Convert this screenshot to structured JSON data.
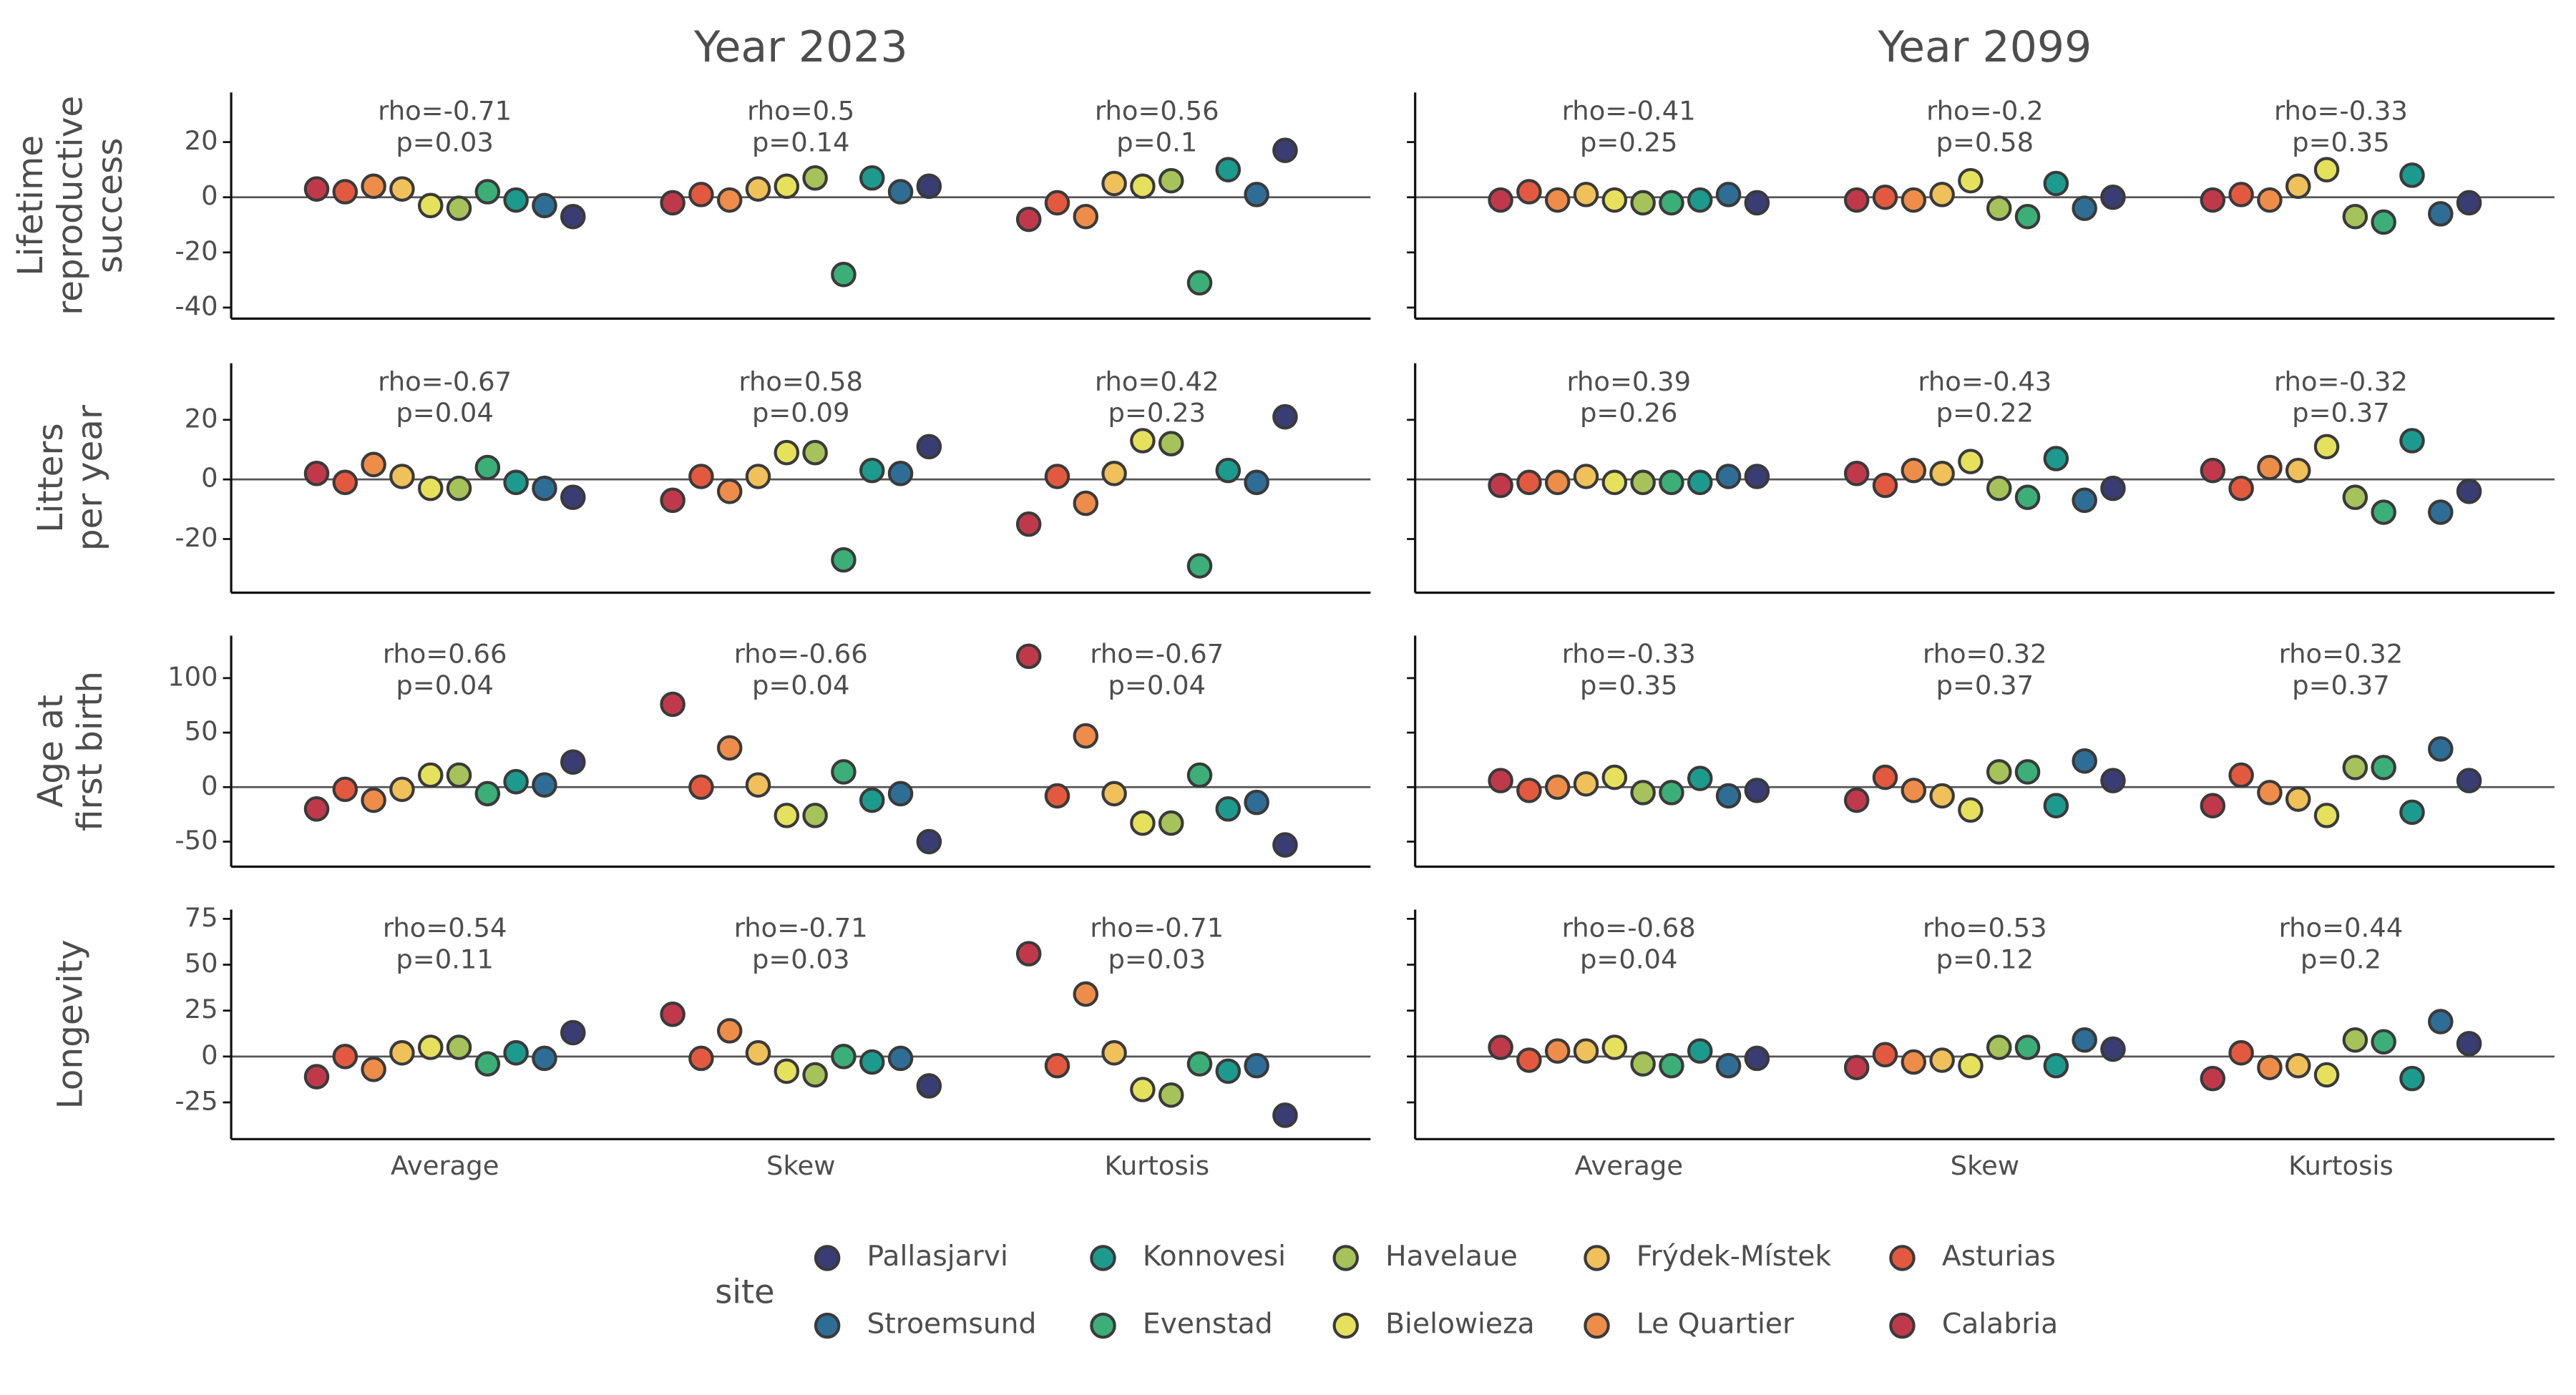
{
  "chart_data": {
    "type": "scatter",
    "columns": [
      "Year 2023",
      "Year 2099"
    ],
    "categories": [
      "Average",
      "Skew",
      "Kurtosis"
    ],
    "reference_line": 0,
    "legend_title": "site",
    "series": [
      {
        "name": "Calabria",
        "color": "#c0394b"
      },
      {
        "name": "Asturias",
        "color": "#e3593f"
      },
      {
        "name": "Le Quartier",
        "color": "#ee8d4a"
      },
      {
        "name": "Frýdek-Místek",
        "color": "#f0c05a"
      },
      {
        "name": "Bielowieza",
        "color": "#e5e15d"
      },
      {
        "name": "Havelaue",
        "color": "#a6c25a"
      },
      {
        "name": "Evenstad",
        "color": "#3cae78"
      },
      {
        "name": "Konnovesi",
        "color": "#1d9a8e"
      },
      {
        "name": "Stroemsund",
        "color": "#2e6e96"
      },
      {
        "name": "Pallasjarvi",
        "color": "#3a3d73"
      }
    ],
    "rows": [
      {
        "label": [
          "Lifetime",
          "reproductive",
          "success"
        ],
        "ylim": [
          -44,
          38
        ],
        "yticks": [
          -40,
          -20,
          0,
          20
        ],
        "panels": [
          {
            "annotations": [
              [
                "rho=-0.71",
                "p=0.03"
              ],
              [
                "rho=0.5",
                "p=0.14"
              ],
              [
                "rho=0.56",
                "p=0.1"
              ]
            ],
            "values": [
              [
                3,
                2,
                4,
                3,
                -3,
                -4,
                2,
                -1,
                -3,
                -7
              ],
              [
                -2,
                1,
                -1,
                3,
                4,
                7,
                -28,
                7,
                2,
                4
              ],
              [
                -8,
                -2,
                -7,
                5,
                4,
                6,
                -31,
                10,
                1,
                17
              ]
            ]
          },
          {
            "annotations": [
              [
                "rho=-0.41",
                "p=0.25"
              ],
              [
                "rho=-0.2",
                "p=0.58"
              ],
              [
                "rho=-0.33",
                "p=0.35"
              ]
            ],
            "values": [
              [
                -1,
                2,
                -1,
                1,
                -1,
                -2,
                -2,
                -1,
                1,
                -2
              ],
              [
                -1,
                0,
                -1,
                1,
                6,
                -4,
                -7,
                5,
                -4,
                0
              ],
              [
                -1,
                1,
                -1,
                4,
                10,
                -7,
                -9,
                8,
                -6,
                -2
              ]
            ]
          }
        ]
      },
      {
        "label": [
          "Litters",
          "per year"
        ],
        "ylim": [
          -38,
          39
        ],
        "yticks": [
          -20,
          0,
          20
        ],
        "panels": [
          {
            "annotations": [
              [
                "rho=-0.67",
                "p=0.04"
              ],
              [
                "rho=0.58",
                "p=0.09"
              ],
              [
                "rho=0.42",
                "p=0.23"
              ]
            ],
            "values": [
              [
                2,
                -1,
                5,
                1,
                -3,
                -3,
                4,
                -1,
                -3,
                -6
              ],
              [
                -7,
                1,
                -4,
                1,
                9,
                9,
                -27,
                3,
                2,
                11
              ],
              [
                -15,
                1,
                -8,
                2,
                13,
                12,
                -29,
                3,
                -1,
                21
              ]
            ]
          },
          {
            "annotations": [
              [
                "rho=0.39",
                "p=0.26"
              ],
              [
                "rho=-0.43",
                "p=0.22"
              ],
              [
                "rho=-0.32",
                "p=0.37"
              ]
            ],
            "values": [
              [
                -2,
                -1,
                -1,
                1,
                -1,
                -1,
                -1,
                -1,
                1,
                1
              ],
              [
                2,
                -2,
                3,
                2,
                6,
                -3,
                -6,
                7,
                -7,
                -3
              ],
              [
                3,
                -3,
                4,
                3,
                11,
                -6,
                -11,
                13,
                -11,
                -4
              ]
            ]
          }
        ]
      },
      {
        "label": [
          "Age at",
          "first birth"
        ],
        "ylim": [
          -73,
          139
        ],
        "yticks": [
          -50,
          0,
          50,
          100
        ],
        "panels": [
          {
            "annotations": [
              [
                "rho=0.66",
                "p=0.04"
              ],
              [
                "rho=-0.66",
                "p=0.04"
              ],
              [
                "rho=-0.67",
                "p=0.04"
              ]
            ],
            "values": [
              [
                -20,
                -2,
                -12,
                -2,
                11,
                11,
                -6,
                5,
                2,
                23
              ],
              [
                76,
                0,
                36,
                2,
                -26,
                -26,
                14,
                -12,
                -6,
                -50
              ],
              [
                120,
                -8,
                47,
                -6,
                -33,
                -33,
                11,
                -20,
                -14,
                -53
              ]
            ]
          },
          {
            "annotations": [
              [
                "rho=-0.33",
                "p=0.35"
              ],
              [
                "rho=0.32",
                "p=0.37"
              ],
              [
                "rho=0.32",
                "p=0.37"
              ]
            ],
            "values": [
              [
                6,
                -3,
                0,
                3,
                9,
                -5,
                -5,
                8,
                -8,
                -3
              ],
              [
                -12,
                9,
                -3,
                -8,
                -21,
                14,
                14,
                -17,
                24,
                6
              ],
              [
                -17,
                11,
                -5,
                -11,
                -26,
                18,
                18,
                -23,
                35,
                6
              ]
            ]
          }
        ]
      },
      {
        "label": [
          "Longevity"
        ],
        "ylim": [
          -45,
          80
        ],
        "yticks": [
          -25,
          0,
          25,
          50,
          75
        ],
        "panels": [
          {
            "annotations": [
              [
                "rho=0.54",
                "p=0.11"
              ],
              [
                "rho=-0.71",
                "p=0.03"
              ],
              [
                "rho=-0.71",
                "p=0.03"
              ]
            ],
            "values": [
              [
                -11,
                0,
                -7,
                2,
                5,
                5,
                -4,
                2,
                -1,
                13
              ],
              [
                23,
                -1,
                14,
                2,
                -8,
                -10,
                0,
                -3,
                -1,
                -16
              ],
              [
                56,
                -5,
                34,
                2,
                -18,
                -21,
                -4,
                -8,
                -5,
                -32
              ]
            ]
          },
          {
            "annotations": [
              [
                "rho=-0.68",
                "p=0.04"
              ],
              [
                "rho=0.53",
                "p=0.12"
              ],
              [
                "rho=0.44",
                "p=0.2"
              ]
            ],
            "values": [
              [
                5,
                -2,
                3,
                3,
                5,
                -4,
                -5,
                3,
                -5,
                -1
              ],
              [
                -6,
                1,
                -3,
                -2,
                -5,
                5,
                5,
                -5,
                9,
                4
              ],
              [
                -12,
                2,
                -6,
                -5,
                -10,
                9,
                8,
                -12,
                19,
                7
              ]
            ]
          }
        ]
      }
    ]
  }
}
